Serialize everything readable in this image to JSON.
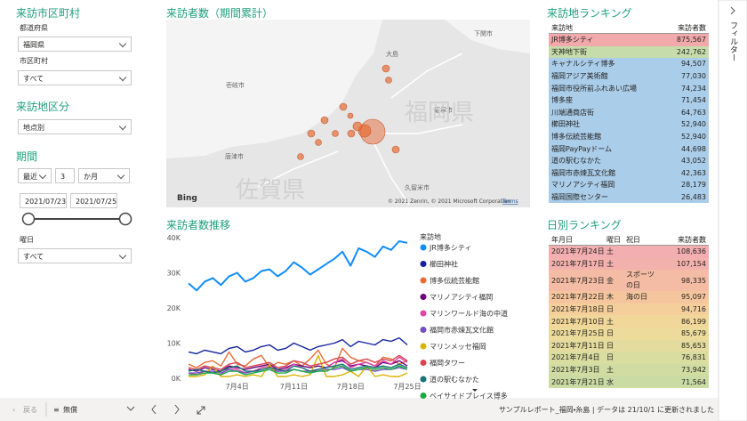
{
  "filters": {
    "area_title": "来訪市区町村",
    "prefecture_label": "都道府県",
    "prefecture": "福岡県",
    "city_label": "市区町村",
    "city": "すべて",
    "category_title": "来訪地区分",
    "category": "地点別",
    "period_title": "期間",
    "period_mode": "最近",
    "period_count": 3,
    "period_unit": "か月",
    "date_start": "2021/07/23",
    "date_end": "2021/07/25",
    "weekday_label": "曜日",
    "weekday": "すべて"
  },
  "map": {
    "title": "来訪者数（期間累計）",
    "labels": [
      "下関市",
      "大島",
      "壱岐市",
      "唐津市",
      "飯塚市",
      "久留米市",
      "福岡県",
      "佐賀県"
    ],
    "logo": "Bing",
    "attribution": "© 2021 Zenrin, © 2021 Microsoft Corporation",
    "terms": "Terms"
  },
  "chart_data": {
    "type": "line",
    "title": "来訪者数推移",
    "legend_title": "来訪地",
    "categories": [
      null,
      null,
      null,
      null,
      null,
      null,
      "7月4日",
      null,
      null,
      null,
      null,
      null,
      null,
      "7月11日",
      null,
      null,
      null,
      null,
      null,
      null,
      "7月18日",
      null,
      null,
      null,
      null,
      null,
      null,
      "7月25日"
    ],
    "ylim": [
      0,
      40000
    ],
    "yticks": [
      {
        "value": 0,
        "label": "0K"
      },
      {
        "value": 10000,
        "label": "10K"
      },
      {
        "value": 20000,
        "label": "20K"
      },
      {
        "value": 30000,
        "label": "30K"
      },
      {
        "value": 40000,
        "label": "40K"
      }
    ],
    "series": [
      {
        "name": "JR博多シティ",
        "color": "#118DFF",
        "values": [
          27000,
          25000,
          27500,
          28500,
          26500,
          29000,
          30000,
          27500,
          28500,
          30500,
          31000,
          29000,
          30500,
          33000,
          31500,
          29500,
          31000,
          32500,
          34000,
          36000,
          32000,
          37000,
          36000,
          34500,
          37500,
          36500,
          39000,
          38500
        ]
      },
      {
        "name": "櫛田神社",
        "color": "#12239E",
        "values": [
          7500,
          7000,
          8000,
          7500,
          7000,
          8500,
          9000,
          7500,
          8000,
          9000,
          9500,
          8000,
          8500,
          10000,
          9000,
          8000,
          9000,
          9500,
          10000,
          11000,
          9000,
          10500,
          10000,
          9500,
          11000,
          10500,
          11500,
          9500
        ]
      },
      {
        "name": "博多伝統芸能館",
        "color": "#E66C37",
        "values": [
          4000,
          3000,
          4500,
          5000,
          3500,
          7500,
          4000,
          3500,
          5500,
          6500,
          3000,
          4500,
          4000,
          5000,
          3500,
          5500,
          8000,
          4000,
          3000,
          8500,
          6000,
          5000,
          4500,
          3500,
          6000,
          5500,
          4000,
          5000
        ]
      },
      {
        "name": "マリノアシティ福岡",
        "color": "#6B007B",
        "values": [
          2500,
          2000,
          3000,
          2500,
          2000,
          3500,
          3000,
          2500,
          3000,
          3500,
          4000,
          2500,
          3000,
          4000,
          3500,
          3000,
          3500,
          3000,
          4500,
          5000,
          3500,
          4000,
          3500,
          3000,
          4500,
          4000,
          5000,
          3500
        ]
      },
      {
        "name": "マリンワールド海の中道",
        "color": "#E044A7",
        "values": [
          1500,
          1000,
          2000,
          1500,
          1000,
          3000,
          2500,
          1500,
          2000,
          3000,
          3500,
          2000,
          2500,
          4000,
          3000,
          2000,
          2500,
          3000,
          4500,
          5500,
          3000,
          4000,
          4500,
          3500,
          5000,
          4000,
          6000,
          4500
        ]
      },
      {
        "name": "福岡市赤煉瓦文化館",
        "color": "#744EC2",
        "values": [
          1500,
          1500,
          2000,
          2000,
          1500,
          2500,
          2000,
          1500,
          2000,
          2000,
          2500,
          2000,
          2000,
          2500,
          2000,
          2000,
          2000,
          2500,
          2500,
          3000,
          2000,
          2500,
          2500,
          2000,
          2500,
          2500,
          3000,
          2500
        ]
      },
      {
        "name": "マリンメッセ福岡",
        "color": "#D9B300",
        "values": [
          500,
          500,
          1000,
          3500,
          500,
          500,
          1000,
          500,
          1000,
          500,
          4000,
          500,
          500,
          1000,
          500,
          1000,
          6500,
          500,
          500,
          1000,
          2000,
          500,
          3500,
          500,
          1000,
          500,
          500,
          1500
        ]
      },
      {
        "name": "福岡タワー",
        "color": "#D64550",
        "values": [
          3000,
          2500,
          3500,
          3000,
          2500,
          4000,
          4500,
          3000,
          3500,
          4000,
          4500,
          3000,
          3500,
          5000,
          4500,
          3500,
          4000,
          4500,
          5500,
          6000,
          4000,
          5000,
          5500,
          4500,
          5500,
          5000,
          6500,
          5000
        ]
      },
      {
        "name": "道の駅むなかた",
        "color": "#197278",
        "values": [
          2000,
          2500,
          2000,
          1500,
          2000,
          3000,
          3500,
          2000,
          2000,
          2500,
          3000,
          2500,
          2000,
          3500,
          3000,
          2000,
          2500,
          3000,
          3500,
          4000,
          2500,
          3000,
          3500,
          3000,
          3500,
          3000,
          4000,
          3000
        ]
      },
      {
        "name": "ベイサイドプレイス博多",
        "color": "#1AAB40",
        "values": [
          1000,
          1000,
          1500,
          1500,
          1000,
          2000,
          2000,
          1000,
          1500,
          2000,
          2500,
          1500,
          1500,
          2500,
          2000,
          1500,
          2000,
          2000,
          3000,
          3500,
          2000,
          2500,
          3000,
          2500,
          3000,
          2500,
          3500,
          2500
        ]
      }
    ]
  },
  "place_ranking": {
    "title": "来訪地ランキング",
    "columns": [
      "来訪地",
      "来訪者数"
    ],
    "rows": [
      [
        "JR博多シティ",
        "875,567"
      ],
      [
        "天神地下街",
        "242,762"
      ],
      [
        "キャナルシティ博多",
        "94,507"
      ],
      [
        "福岡アジア美術館",
        "77,030"
      ],
      [
        "福岡市役所前ふれあい広場",
        "74,234"
      ],
      [
        "博多座",
        "71,454"
      ],
      [
        "川端通商店街",
        "64,763"
      ],
      [
        "櫛田神社",
        "52,940"
      ],
      [
        "博多伝統芸能館",
        "52,940"
      ],
      [
        "福岡PayPayドーム",
        "44,698"
      ],
      [
        "道の駅むなかた",
        "43,052"
      ],
      [
        "福岡市赤煉瓦文化館",
        "42,363"
      ],
      [
        "マリノアシティ福岡",
        "28,179"
      ],
      [
        "福岡国際センター",
        "26,483"
      ]
    ],
    "row_colors": [
      "#f1a9ab",
      "#c6dcaa",
      "#aacde9",
      "#aacde9",
      "#aacde9",
      "#aacde9",
      "#aacde9",
      "#aacde9",
      "#aacde9",
      "#aacde9",
      "#aacde9",
      "#aacde9",
      "#aacde9",
      "#aacde9"
    ]
  },
  "daily_ranking": {
    "title": "日別ランキング",
    "columns": [
      "年月日",
      "曜日",
      "祝日",
      "来訪者数"
    ],
    "rows": [
      [
        "2021年7月24日",
        "土",
        null,
        "108,636"
      ],
      [
        "2021年7月17日",
        "土",
        null,
        "107,154"
      ],
      [
        "2021年7月23日",
        "金",
        "スポーツの日",
        "98,335"
      ],
      [
        "2021年7月22日",
        "木",
        "海の日",
        "95,097"
      ],
      [
        "2021年7月18日",
        "日",
        null,
        "94,716"
      ],
      [
        "2021年7月10日",
        "土",
        null,
        "86,199"
      ],
      [
        "2021年7月25日",
        "日",
        null,
        "85,679"
      ],
      [
        "2021年7月11日",
        "日",
        null,
        "85,653"
      ],
      [
        "2021年7月4日",
        "日",
        null,
        "76,831"
      ],
      [
        "2021年7月3日",
        "土",
        null,
        "73,942"
      ],
      [
        "2021年7月21日",
        "水",
        null,
        "71,564"
      ]
    ],
    "row_colors": [
      "#f2aeb0",
      "#f2b1ad",
      "#f4bca4",
      "#f5c59d",
      "#f5cf9b",
      "#f2d79a",
      "#ecdb9b",
      "#e3dc9e",
      "#dadda0",
      "#d1dca2",
      "#cadba4"
    ]
  },
  "footer": {
    "back": "戻る",
    "page": "無償",
    "status": "サンプルレポート_福岡・糸島 | データは 21/10/1 に更新されました"
  },
  "filter_pane": "フィルター"
}
